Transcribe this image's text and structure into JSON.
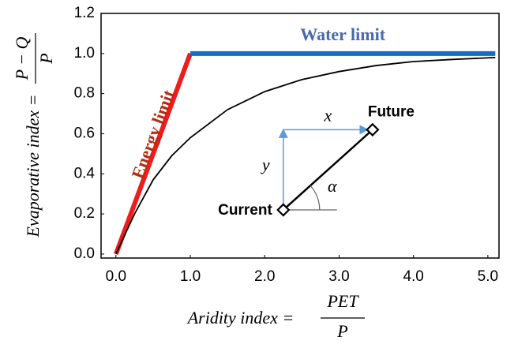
{
  "chart_data": {
    "type": "line",
    "x_label": "Aridity index =",
    "x_label_numerator": "PET",
    "x_label_denominator": "P",
    "y_label": "Evaporative index =",
    "y_label_numerator": "P − Q",
    "y_label_denominator": "P",
    "xlim": [
      -0.2,
      5.15
    ],
    "ylim": [
      -0.02,
      1.2
    ],
    "xticks": [
      {
        "value": 0,
        "label": "0.0"
      },
      {
        "value": 1,
        "label": "1.0"
      },
      {
        "value": 2,
        "label": "2.0"
      },
      {
        "value": 3,
        "label": "3.0"
      },
      {
        "value": 4,
        "label": "4.0"
      },
      {
        "value": 5,
        "label": "5.0"
      }
    ],
    "yticks": [
      {
        "value": 0,
        "label": "0.0"
      },
      {
        "value": 0.2,
        "label": "0.2"
      },
      {
        "value": 0.4,
        "label": "0.4"
      },
      {
        "value": 0.6,
        "label": "0.6"
      },
      {
        "value": 0.8,
        "label": "0.8"
      },
      {
        "value": 1,
        "label": "1.0"
      },
      {
        "value": 1.2,
        "label": "1.2"
      }
    ],
    "series": [
      {
        "name": "Energy limit",
        "color": "#ee1c1c",
        "label_color": "#b52a12",
        "x": [
          0,
          1
        ],
        "values": [
          0,
          1
        ]
      },
      {
        "name": "Water limit",
        "color": "#0f6fc6",
        "label_color": "#4a6aa8",
        "x": [
          1,
          5.1
        ],
        "values": [
          1,
          1
        ]
      },
      {
        "color": "#000000",
        "x": [
          0,
          0.25,
          0.5,
          0.75,
          1,
          1.5,
          2,
          2.5,
          3,
          3.5,
          4,
          4.5,
          5.1
        ],
        "values": [
          0,
          0.2,
          0.37,
          0.49,
          0.58,
          0.72,
          0.81,
          0.87,
          0.91,
          0.94,
          0.96,
          0.97,
          0.98
        ]
      }
    ],
    "points": [
      {
        "label": "Current",
        "x": 2.25,
        "y": 0.22
      },
      {
        "label": "Future",
        "x": 3.45,
        "y": 0.62
      }
    ],
    "arrow_color": "#5b9bd5",
    "symbols": {
      "dx": "x",
      "dy": "y",
      "angle": "α"
    }
  }
}
